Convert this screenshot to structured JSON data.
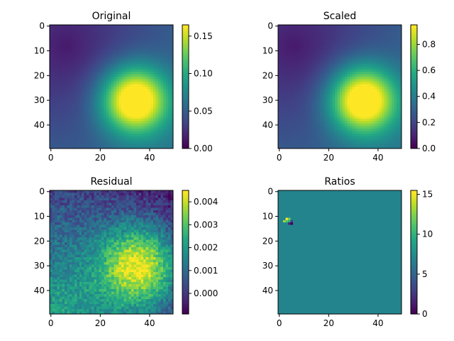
{
  "chart_data": [
    {
      "type": "heatmap",
      "title": "Original",
      "field": "original",
      "xticks": [
        "0",
        "20",
        "40"
      ],
      "yticks": [
        "0",
        "10",
        "20",
        "30",
        "40"
      ],
      "xlim": [
        -0.5,
        49.5
      ],
      "ylim": [
        49.5,
        -0.5
      ],
      "cbar_ticks": [
        "0.00",
        "0.05",
        "0.10",
        "0.15"
      ],
      "cbar_range": [
        0.0,
        0.165
      ],
      "colormap": "viridis"
    },
    {
      "type": "heatmap",
      "title": "Scaled",
      "field": "scaled",
      "xticks": [
        "0",
        "20",
        "40"
      ],
      "yticks": [
        "0",
        "10",
        "20",
        "30",
        "40"
      ],
      "xlim": [
        -0.5,
        49.5
      ],
      "ylim": [
        49.5,
        -0.5
      ],
      "cbar_ticks": [
        "0.0",
        "0.2",
        "0.4",
        "0.6",
        "0.8"
      ],
      "cbar_range": [
        0.0,
        0.95
      ],
      "colormap": "viridis"
    },
    {
      "type": "heatmap",
      "title": "Residual",
      "field": "residual",
      "xticks": [
        "0",
        "20",
        "40"
      ],
      "yticks": [
        "0",
        "10",
        "20",
        "30",
        "40"
      ],
      "xlim": [
        -0.5,
        49.5
      ],
      "ylim": [
        49.5,
        -0.5
      ],
      "cbar_ticks": [
        "0.000",
        "0.001",
        "0.002",
        "0.003",
        "0.004"
      ],
      "cbar_range": [
        -0.0009,
        0.0045
      ],
      "colormap": "viridis"
    },
    {
      "type": "heatmap",
      "title": "Ratios",
      "field": "ratios",
      "xticks": [
        "0",
        "20",
        "40"
      ],
      "yticks": [
        "0",
        "10",
        "20",
        "30",
        "40"
      ],
      "xlim": [
        -0.5,
        49.5
      ],
      "ylim": [
        49.5,
        -0.5
      ],
      "cbar_ticks": [
        "0",
        "5",
        "10",
        "15"
      ],
      "cbar_range": [
        0,
        15.5
      ],
      "colormap": "viridis"
    }
  ]
}
